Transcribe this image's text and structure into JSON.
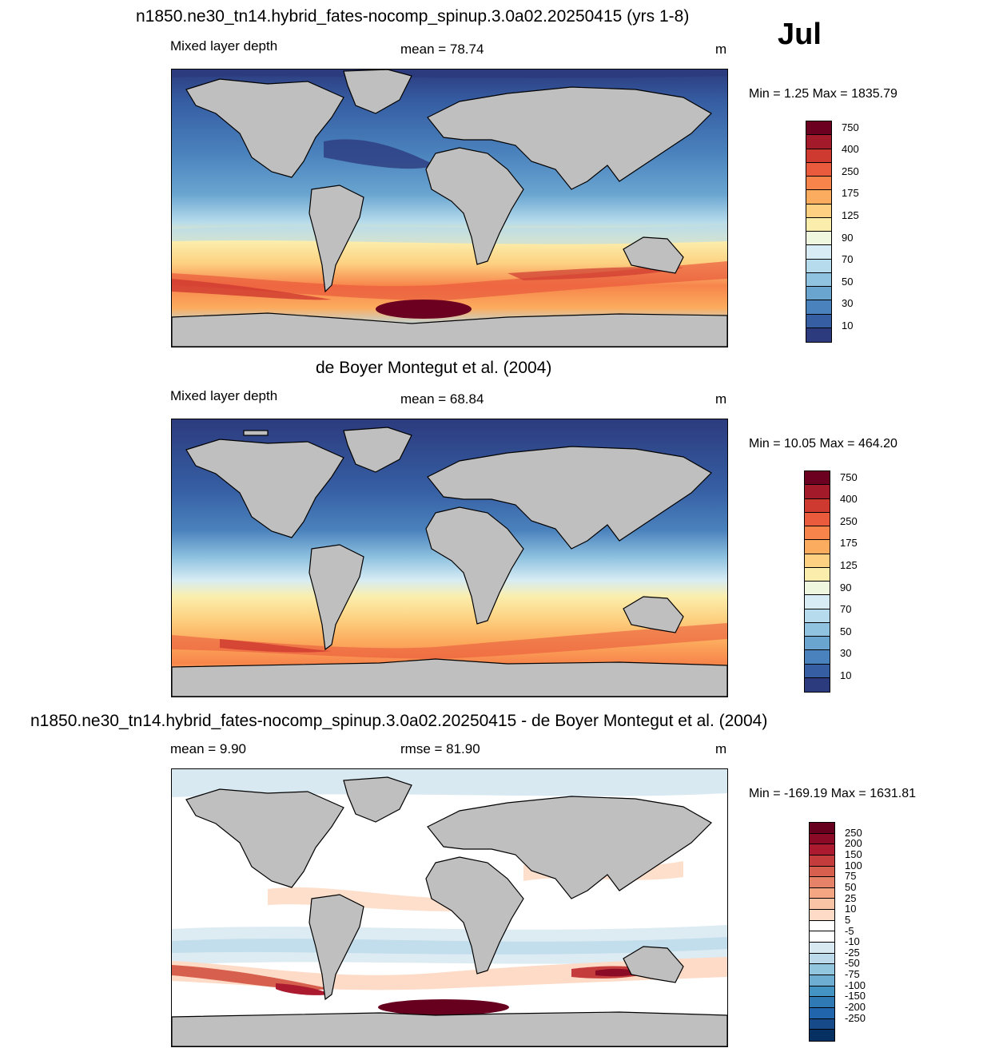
{
  "figure": {
    "month": "Jul",
    "panels": [
      {
        "title": "n1850.ne30_tn14.hybrid_fates-nocomp_spinup.3.0a02.20250415 (yrs 1-8)",
        "left_label": "Mixed layer depth",
        "center_label": "mean =  78.74",
        "units": "m",
        "minmax": "Min =   1.25 Max = 1835.79",
        "colorbar": {
          "colors": [
            "#6b0020",
            "#a31b2b",
            "#cf3a30",
            "#ea5a3c",
            "#f7854b",
            "#fcac5e",
            "#fdd181",
            "#fbeeac",
            "#eff8df",
            "#d7ecf4",
            "#b6dbec",
            "#90c3e0",
            "#6aa5d0",
            "#4a82bd",
            "#365ea3",
            "#2c3b7e"
          ],
          "labels": [
            "750",
            "400",
            "250",
            "175",
            "125",
            "90",
            "70",
            "50",
            "30",
            "10"
          ]
        }
      },
      {
        "title": "de Boyer Montegut et al. (2004)",
        "left_label": "Mixed layer depth",
        "center_label": "mean =  68.84",
        "units": "m",
        "minmax": "Min =  10.05 Max = 464.20",
        "colorbar": {
          "colors": [
            "#6b0020",
            "#a31b2b",
            "#cf3a30",
            "#ea5a3c",
            "#f7854b",
            "#fcac5e",
            "#fdd181",
            "#fbeeac",
            "#eff8df",
            "#d7ecf4",
            "#b6dbec",
            "#90c3e0",
            "#6aa5d0",
            "#4a82bd",
            "#365ea3",
            "#2c3b7e"
          ],
          "labels": [
            "750",
            "400",
            "250",
            "175",
            "125",
            "90",
            "70",
            "50",
            "30",
            "10"
          ]
        }
      },
      {
        "title": "n1850.ne30_tn14.hybrid_fates-nocomp_spinup.3.0a02.20250415 - de Boyer Montegut et al. (2004)",
        "left_label": "mean =   9.90",
        "center_label": "rmse =  81.90",
        "units": "m",
        "minmax": "Min = -169.19 Max = 1631.81",
        "colorbar": {
          "colors": [
            "#67001f",
            "#8b0a25",
            "#ab1a2f",
            "#c43c3c",
            "#d6604d",
            "#e58268",
            "#f4a582",
            "#f9c4a6",
            "#fddbc7",
            "#ffffff",
            "#ffffff",
            "#d9e9f2",
            "#bcdaea",
            "#92c5de",
            "#6eaed2",
            "#4393c3",
            "#2f79b5",
            "#2166ac",
            "#174a89",
            "#053061"
          ],
          "labels": [
            "250",
            "200",
            "150",
            "100",
            "75",
            "50",
            "25",
            "10",
            "5",
            "-5",
            "-10",
            "-25",
            "-50",
            "-75",
            "-100",
            "-150",
            "-200",
            "-250"
          ]
        }
      }
    ]
  }
}
